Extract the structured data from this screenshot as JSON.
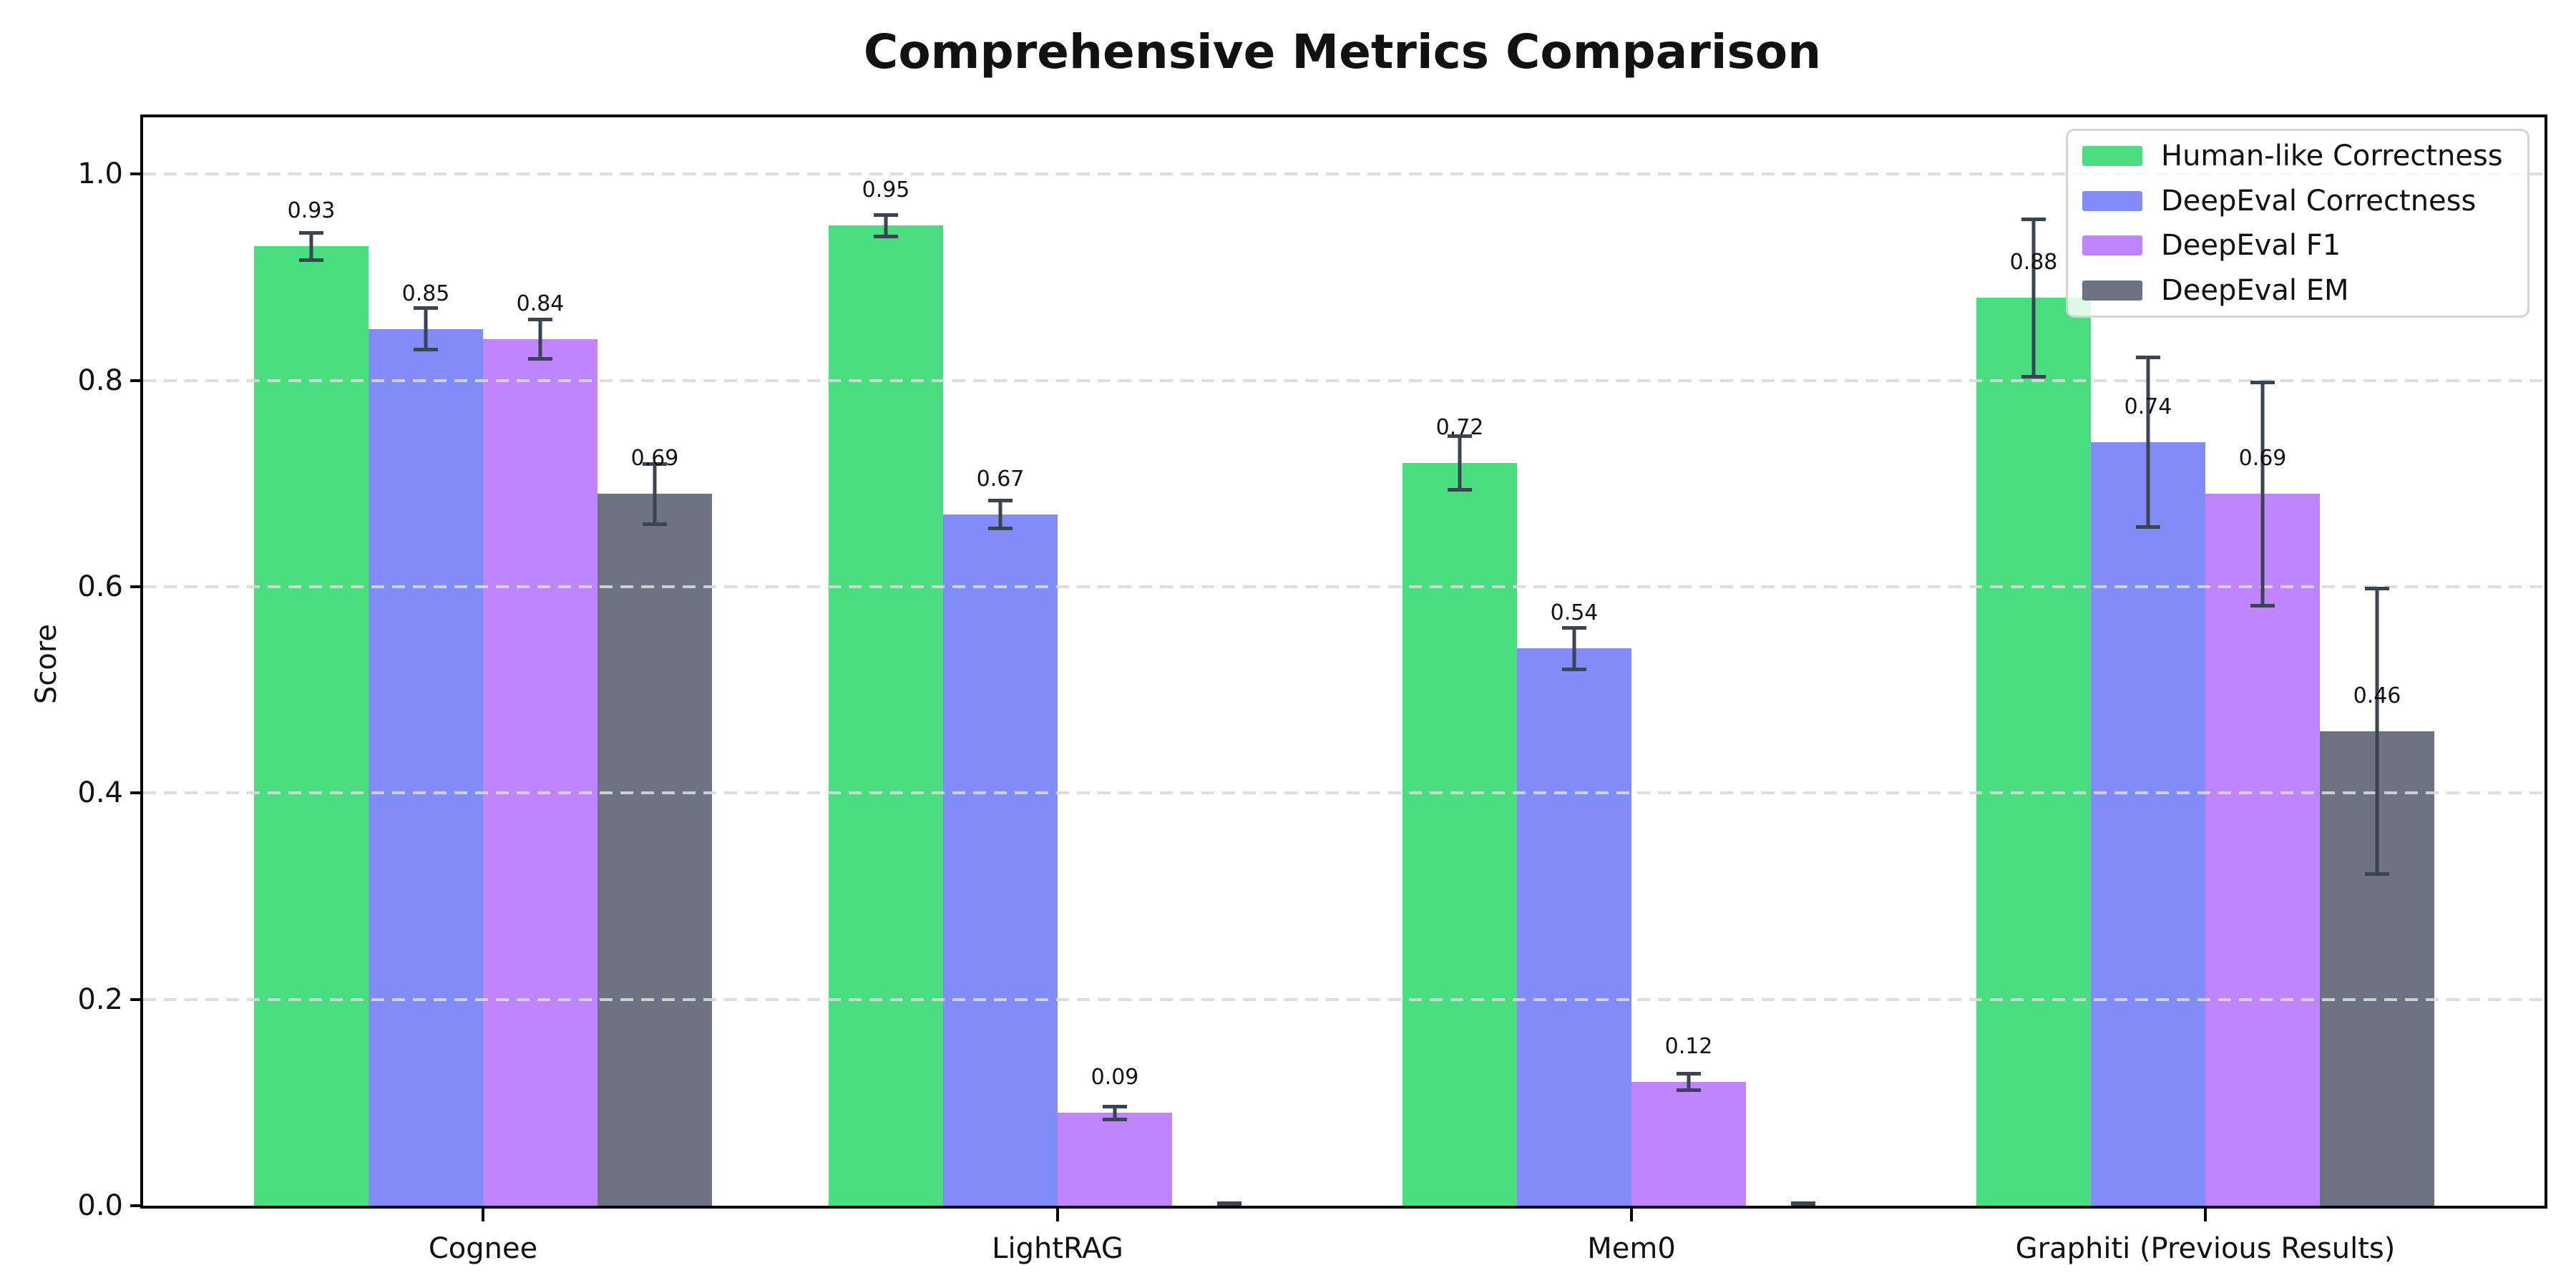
{
  "title": "Comprehensive Metrics Comparison",
  "y_axis": {
    "label": "Score",
    "tick_labels": [
      "0.0",
      "0.2",
      "0.4",
      "0.6",
      "0.8",
      "1.0"
    ]
  },
  "chart_data": {
    "type": "bar",
    "title": "Comprehensive Metrics Comparison",
    "xlabel": "",
    "ylabel": "Score",
    "categories": [
      "Cognee",
      "LightRAG",
      "Mem0",
      "Graphiti (Previous Results)"
    ],
    "series": [
      {
        "name": "Human-like Correctness",
        "color": "#4ade80",
        "values": [
          0.93,
          0.95,
          0.72,
          0.88
        ],
        "errors": [
          0.015,
          0.012,
          0.028,
          0.078
        ],
        "value_labels": [
          "0.93",
          "0.95",
          "0.72",
          "0.88"
        ]
      },
      {
        "name": "DeepEval Correctness",
        "color": "#818cf8",
        "values": [
          0.85,
          0.67,
          0.54,
          0.74
        ],
        "errors": [
          0.022,
          0.015,
          0.022,
          0.084
        ],
        "value_labels": [
          "0.85",
          "0.67",
          "0.54",
          "0.74"
        ]
      },
      {
        "name": "DeepEval F1",
        "color": "#c084fc",
        "values": [
          0.84,
          0.09,
          0.12,
          0.69
        ],
        "errors": [
          0.021,
          0.008,
          0.01,
          0.11
        ],
        "value_labels": [
          "0.84",
          "0.09",
          "0.12",
          "0.69"
        ]
      },
      {
        "name": "DeepEval EM",
        "color": "#6b7280",
        "values": [
          0.69,
          0.0,
          0.0,
          0.46
        ],
        "errors": [
          0.031,
          0.004,
          0.004,
          0.14
        ],
        "value_labels": [
          "0.69",
          null,
          null,
          "0.46"
        ]
      }
    ],
    "ylim": [
      0,
      1.055
    ],
    "yticks": [
      0.0,
      0.2,
      0.4,
      0.6,
      0.8,
      1.0
    ],
    "grid": {
      "axis": "y",
      "style": "dashed",
      "color": "#d9d9d9"
    },
    "legend_position": "upper right",
    "error_bar_color": "#3b4453",
    "axis_color": "#000000",
    "background_color": "#ffffff"
  }
}
